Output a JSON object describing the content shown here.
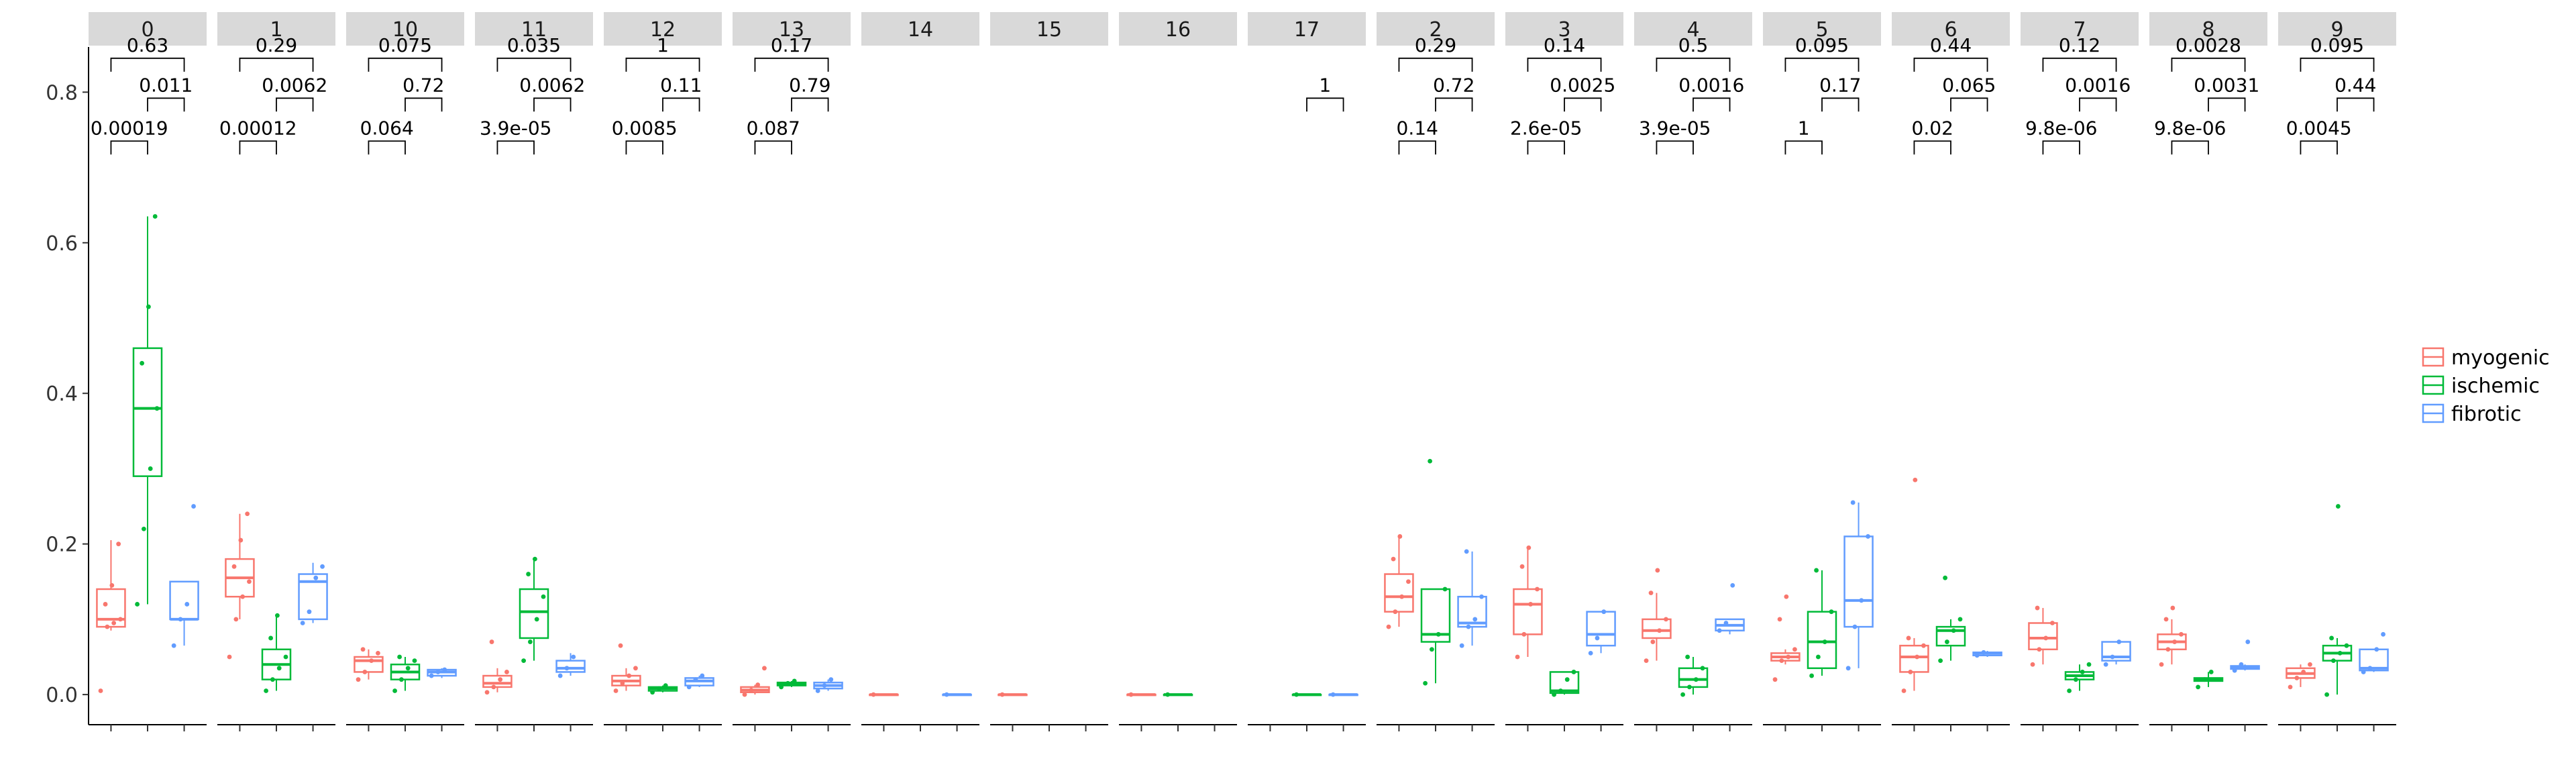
{
  "chart_data": {
    "type": "boxplot",
    "title": "",
    "xlabel": "",
    "ylabel": "",
    "ylim": [
      -0.04,
      0.86
    ],
    "yticks": [
      0.0,
      0.2,
      0.4,
      0.6,
      0.8
    ],
    "ytick_labels": [
      "0.0",
      "0.2",
      "0.4",
      "0.6",
      "0.8"
    ],
    "legend": {
      "position": "right",
      "entries": [
        "myogenic",
        "ischemic",
        "fibrotic"
      ]
    },
    "colors": {
      "myogenic": "#F8766D",
      "ischemic": "#00BA38",
      "fibrotic": "#619CFF"
    },
    "groups": [
      "myogenic",
      "ischemic",
      "fibrotic"
    ],
    "panels": [
      {
        "label": "0",
        "boxes": [
          {
            "group": "myogenic",
            "q1": 0.09,
            "median": 0.1,
            "q3": 0.14,
            "lower": 0.085,
            "upper": 0.205,
            "points": [
              0.005,
              0.09,
              0.095,
              0.1,
              0.12,
              0.145,
              0.2
            ]
          },
          {
            "group": "ischemic",
            "q1": 0.29,
            "median": 0.38,
            "q3": 0.46,
            "lower": 0.12,
            "upper": 0.635,
            "points": [
              0.12,
              0.22,
              0.3,
              0.38,
              0.44,
              0.515,
              0.635
            ]
          },
          {
            "group": "fibrotic",
            "q1": 0.1,
            "median": 0.1,
            "q3": 0.15,
            "lower": 0.065,
            "upper": 0.15,
            "points": [
              0.065,
              0.1,
              0.12,
              0.25
            ]
          }
        ],
        "pvalues": {
          "myo_isc": "0.00019",
          "isc_fib": "0.011",
          "myo_fib": "0.63"
        }
      },
      {
        "label": "1",
        "boxes": [
          {
            "group": "myogenic",
            "q1": 0.13,
            "median": 0.155,
            "q3": 0.18,
            "lower": 0.1,
            "upper": 0.24,
            "points": [
              0.05,
              0.1,
              0.13,
              0.15,
              0.17,
              0.205,
              0.24
            ]
          },
          {
            "group": "ischemic",
            "q1": 0.02,
            "median": 0.04,
            "q3": 0.06,
            "lower": 0.005,
            "upper": 0.105,
            "points": [
              0.005,
              0.02,
              0.035,
              0.05,
              0.075,
              0.105
            ]
          },
          {
            "group": "fibrotic",
            "q1": 0.1,
            "median": 0.15,
            "q3": 0.16,
            "lower": 0.095,
            "upper": 0.175,
            "points": [
              0.095,
              0.11,
              0.155,
              0.17
            ]
          }
        ],
        "pvalues": {
          "myo_isc": "0.00012",
          "isc_fib": "0.0062",
          "myo_fib": "0.29"
        }
      },
      {
        "label": "10",
        "boxes": [
          {
            "group": "myogenic",
            "q1": 0.03,
            "median": 0.045,
            "q3": 0.05,
            "lower": 0.02,
            "upper": 0.06,
            "points": [
              0.02,
              0.03,
              0.045,
              0.055,
              0.06
            ]
          },
          {
            "group": "ischemic",
            "q1": 0.02,
            "median": 0.03,
            "q3": 0.04,
            "lower": 0.005,
            "upper": 0.05,
            "points": [
              0.005,
              0.02,
              0.035,
              0.045,
              0.05
            ]
          },
          {
            "group": "fibrotic",
            "q1": 0.025,
            "median": 0.03,
            "q3": 0.033,
            "lower": 0.022,
            "upper": 0.035,
            "points": [
              0.025,
              0.03,
              0.033
            ]
          }
        ],
        "pvalues": {
          "myo_isc": "0.064",
          "isc_fib": "0.72",
          "myo_fib": "0.075"
        }
      },
      {
        "label": "11",
        "boxes": [
          {
            "group": "myogenic",
            "q1": 0.01,
            "median": 0.015,
            "q3": 0.025,
            "lower": 0.003,
            "upper": 0.035,
            "points": [
              0.003,
              0.01,
              0.02,
              0.03,
              0.07
            ]
          },
          {
            "group": "ischemic",
            "q1": 0.075,
            "median": 0.11,
            "q3": 0.14,
            "lower": 0.045,
            "upper": 0.18,
            "points": [
              0.045,
              0.07,
              0.1,
              0.13,
              0.16,
              0.18
            ]
          },
          {
            "group": "fibrotic",
            "q1": 0.03,
            "median": 0.035,
            "q3": 0.045,
            "lower": 0.025,
            "upper": 0.055,
            "points": [
              0.025,
              0.035,
              0.05
            ]
          }
        ],
        "pvalues": {
          "myo_isc": "3.9e-05",
          "isc_fib": "0.0062",
          "myo_fib": "0.035"
        }
      },
      {
        "label": "12",
        "boxes": [
          {
            "group": "myogenic",
            "q1": 0.012,
            "median": 0.018,
            "q3": 0.025,
            "lower": 0.005,
            "upper": 0.035,
            "points": [
              0.005,
              0.015,
              0.025,
              0.035,
              0.065
            ]
          },
          {
            "group": "ischemic",
            "q1": 0.005,
            "median": 0.008,
            "q3": 0.01,
            "lower": 0.003,
            "upper": 0.012,
            "points": [
              0.003,
              0.008,
              0.012
            ]
          },
          {
            "group": "fibrotic",
            "q1": 0.012,
            "median": 0.018,
            "q3": 0.022,
            "lower": 0.01,
            "upper": 0.025,
            "points": [
              0.01,
              0.02,
              0.025
            ]
          }
        ],
        "pvalues": {
          "myo_isc": "0.0085",
          "isc_fib": "0.11",
          "myo_fib": "1"
        }
      },
      {
        "label": "13",
        "boxes": [
          {
            "group": "myogenic",
            "q1": 0.003,
            "median": 0.006,
            "q3": 0.01,
            "lower": 0.0,
            "upper": 0.013,
            "points": [
              0.0,
              0.006,
              0.013,
              0.035
            ]
          },
          {
            "group": "ischemic",
            "q1": 0.012,
            "median": 0.014,
            "q3": 0.016,
            "lower": 0.01,
            "upper": 0.018,
            "points": [
              0.01,
              0.015,
              0.018
            ]
          },
          {
            "group": "fibrotic",
            "q1": 0.008,
            "median": 0.012,
            "q3": 0.016,
            "lower": 0.005,
            "upper": 0.02,
            "points": [
              0.005,
              0.012,
              0.02
            ]
          }
        ],
        "pvalues": {
          "myo_isc": "0.087",
          "isc_fib": "0.79",
          "myo_fib": "0.17"
        }
      },
      {
        "label": "14",
        "boxes": [
          {
            "group": "myogenic",
            "q1": 0.0,
            "median": 0.0,
            "q3": 0.0,
            "lower": 0.0,
            "upper": 0.0,
            "points": [
              0.0
            ]
          },
          {
            "group": "fibrotic",
            "q1": 0.0,
            "median": 0.0,
            "q3": 0.0,
            "lower": 0.0,
            "upper": 0.0,
            "points": [
              0.0
            ]
          }
        ],
        "pvalues": {}
      },
      {
        "label": "15",
        "boxes": [
          {
            "group": "myogenic",
            "q1": 0.0,
            "median": 0.0,
            "q3": 0.0,
            "lower": 0.0,
            "upper": 0.0,
            "points": [
              0.0
            ]
          }
        ],
        "pvalues": {}
      },
      {
        "label": "16",
        "boxes": [
          {
            "group": "myogenic",
            "q1": 0.0,
            "median": 0.0,
            "q3": 0.0,
            "lower": 0.0,
            "upper": 0.0,
            "points": [
              0.0
            ]
          },
          {
            "group": "ischemic",
            "q1": 0.0,
            "median": 0.0,
            "q3": 0.0,
            "lower": 0.0,
            "upper": 0.0,
            "points": [
              0.0
            ]
          }
        ],
        "pvalues": {}
      },
      {
        "label": "17",
        "boxes": [
          {
            "group": "ischemic",
            "q1": 0.0,
            "median": 0.0,
            "q3": 0.0,
            "lower": 0.0,
            "upper": 0.0,
            "points": [
              0.0
            ]
          },
          {
            "group": "fibrotic",
            "q1": 0.0,
            "median": 0.0,
            "q3": 0.0,
            "lower": 0.0,
            "upper": 0.0,
            "points": [
              0.0
            ]
          }
        ],
        "pvalues": {
          "isc_fib": "1"
        }
      },
      {
        "label": "2",
        "boxes": [
          {
            "group": "myogenic",
            "q1": 0.11,
            "median": 0.13,
            "q3": 0.16,
            "lower": 0.09,
            "upper": 0.21,
            "points": [
              0.09,
              0.11,
              0.13,
              0.15,
              0.18,
              0.21
            ]
          },
          {
            "group": "ischemic",
            "q1": 0.07,
            "median": 0.08,
            "q3": 0.14,
            "lower": 0.015,
            "upper": 0.14,
            "points": [
              0.015,
              0.06,
              0.08,
              0.14,
              0.31
            ]
          },
          {
            "group": "fibrotic",
            "q1": 0.09,
            "median": 0.095,
            "q3": 0.13,
            "lower": 0.065,
            "upper": 0.19,
            "points": [
              0.065,
              0.09,
              0.1,
              0.13,
              0.19
            ]
          }
        ],
        "pvalues": {
          "myo_isc": "0.14",
          "isc_fib": "0.72",
          "myo_fib": "0.29"
        }
      },
      {
        "label": "3",
        "boxes": [
          {
            "group": "myogenic",
            "q1": 0.08,
            "median": 0.12,
            "q3": 0.14,
            "lower": 0.05,
            "upper": 0.195,
            "points": [
              0.05,
              0.08,
              0.12,
              0.14,
              0.17,
              0.195
            ]
          },
          {
            "group": "ischemic",
            "q1": 0.002,
            "median": 0.005,
            "q3": 0.03,
            "lower": 0.0,
            "upper": 0.03,
            "points": [
              0.0,
              0.005,
              0.02,
              0.03
            ]
          },
          {
            "group": "fibrotic",
            "q1": 0.065,
            "median": 0.08,
            "q3": 0.11,
            "lower": 0.055,
            "upper": 0.11,
            "points": [
              0.055,
              0.075,
              0.11
            ]
          }
        ],
        "pvalues": {
          "myo_isc": "2.6e-05",
          "isc_fib": "0.0025",
          "myo_fib": "0.14"
        }
      },
      {
        "label": "4",
        "boxes": [
          {
            "group": "myogenic",
            "q1": 0.075,
            "median": 0.085,
            "q3": 0.1,
            "lower": 0.045,
            "upper": 0.135,
            "points": [
              0.045,
              0.07,
              0.085,
              0.1,
              0.135,
              0.165
            ]
          },
          {
            "group": "ischemic",
            "q1": 0.01,
            "median": 0.02,
            "q3": 0.035,
            "lower": 0.0,
            "upper": 0.05,
            "points": [
              0.0,
              0.01,
              0.02,
              0.035,
              0.05
            ]
          },
          {
            "group": "fibrotic",
            "q1": 0.085,
            "median": 0.092,
            "q3": 0.1,
            "lower": 0.08,
            "upper": 0.1,
            "points": [
              0.085,
              0.095,
              0.145
            ]
          }
        ],
        "pvalues": {
          "myo_isc": "3.9e-05",
          "isc_fib": "0.0016",
          "myo_fib": "0.5"
        }
      },
      {
        "label": "5",
        "boxes": [
          {
            "group": "myogenic",
            "q1": 0.045,
            "median": 0.05,
            "q3": 0.055,
            "lower": 0.04,
            "upper": 0.06,
            "points": [
              0.02,
              0.045,
              0.05,
              0.06,
              0.1,
              0.13
            ]
          },
          {
            "group": "ischemic",
            "q1": 0.035,
            "median": 0.07,
            "q3": 0.11,
            "lower": 0.025,
            "upper": 0.165,
            "points": [
              0.025,
              0.05,
              0.07,
              0.11,
              0.165
            ]
          },
          {
            "group": "fibrotic",
            "q1": 0.09,
            "median": 0.125,
            "q3": 0.21,
            "lower": 0.035,
            "upper": 0.255,
            "points": [
              0.035,
              0.09,
              0.125,
              0.21,
              0.255
            ]
          }
        ],
        "pvalues": {
          "myo_isc": "1",
          "isc_fib": "0.17",
          "myo_fib": "0.095"
        }
      },
      {
        "label": "6",
        "boxes": [
          {
            "group": "myogenic",
            "q1": 0.03,
            "median": 0.05,
            "q3": 0.065,
            "lower": 0.005,
            "upper": 0.075,
            "points": [
              0.005,
              0.03,
              0.05,
              0.065,
              0.075,
              0.285
            ]
          },
          {
            "group": "ischemic",
            "q1": 0.065,
            "median": 0.085,
            "q3": 0.09,
            "lower": 0.045,
            "upper": 0.1,
            "points": [
              0.045,
              0.07,
              0.085,
              0.1,
              0.155
            ]
          },
          {
            "group": "fibrotic",
            "q1": 0.052,
            "median": 0.055,
            "q3": 0.056,
            "lower": 0.05,
            "upper": 0.058,
            "points": [
              0.052,
              0.056
            ]
          }
        ],
        "pvalues": {
          "myo_isc": "0.02",
          "isc_fib": "0.065",
          "myo_fib": "0.44"
        }
      },
      {
        "label": "7",
        "boxes": [
          {
            "group": "myogenic",
            "q1": 0.06,
            "median": 0.075,
            "q3": 0.095,
            "lower": 0.04,
            "upper": 0.115,
            "points": [
              0.04,
              0.06,
              0.075,
              0.095,
              0.115
            ]
          },
          {
            "group": "ischemic",
            "q1": 0.02,
            "median": 0.025,
            "q3": 0.03,
            "lower": 0.005,
            "upper": 0.04,
            "points": [
              0.005,
              0.02,
              0.03,
              0.04
            ]
          },
          {
            "group": "fibrotic",
            "q1": 0.045,
            "median": 0.05,
            "q3": 0.07,
            "lower": 0.04,
            "upper": 0.07,
            "points": [
              0.04,
              0.05,
              0.07
            ]
          }
        ],
        "pvalues": {
          "myo_isc": "9.8e-06",
          "isc_fib": "0.0016",
          "myo_fib": "0.12"
        }
      },
      {
        "label": "8",
        "boxes": [
          {
            "group": "myogenic",
            "q1": 0.06,
            "median": 0.07,
            "q3": 0.08,
            "lower": 0.04,
            "upper": 0.1,
            "points": [
              0.04,
              0.06,
              0.07,
              0.08,
              0.1,
              0.115
            ]
          },
          {
            "group": "ischemic",
            "q1": 0.018,
            "median": 0.02,
            "q3": 0.022,
            "lower": 0.01,
            "upper": 0.03,
            "points": [
              0.01,
              0.02,
              0.03
            ]
          },
          {
            "group": "fibrotic",
            "q1": 0.034,
            "median": 0.036,
            "q3": 0.038,
            "lower": 0.032,
            "upper": 0.04,
            "points": [
              0.032,
              0.04,
              0.07
            ]
          }
        ],
        "pvalues": {
          "myo_isc": "9.8e-06",
          "isc_fib": "0.0031",
          "myo_fib": "0.0028"
        }
      },
      {
        "label": "9",
        "boxes": [
          {
            "group": "myogenic",
            "q1": 0.022,
            "median": 0.028,
            "q3": 0.035,
            "lower": 0.01,
            "upper": 0.04,
            "points": [
              0.01,
              0.022,
              0.03,
              0.04
            ]
          },
          {
            "group": "ischemic",
            "q1": 0.045,
            "median": 0.055,
            "q3": 0.065,
            "lower": 0.0,
            "upper": 0.075,
            "points": [
              0.0,
              0.045,
              0.055,
              0.065,
              0.075,
              0.25
            ]
          },
          {
            "group": "fibrotic",
            "q1": 0.032,
            "median": 0.035,
            "q3": 0.06,
            "lower": 0.03,
            "upper": 0.06,
            "points": [
              0.03,
              0.035,
              0.06,
              0.08
            ]
          }
        ],
        "pvalues": {
          "myo_isc": "0.0045",
          "isc_fib": "0.44",
          "myo_fib": "0.095"
        }
      }
    ]
  }
}
